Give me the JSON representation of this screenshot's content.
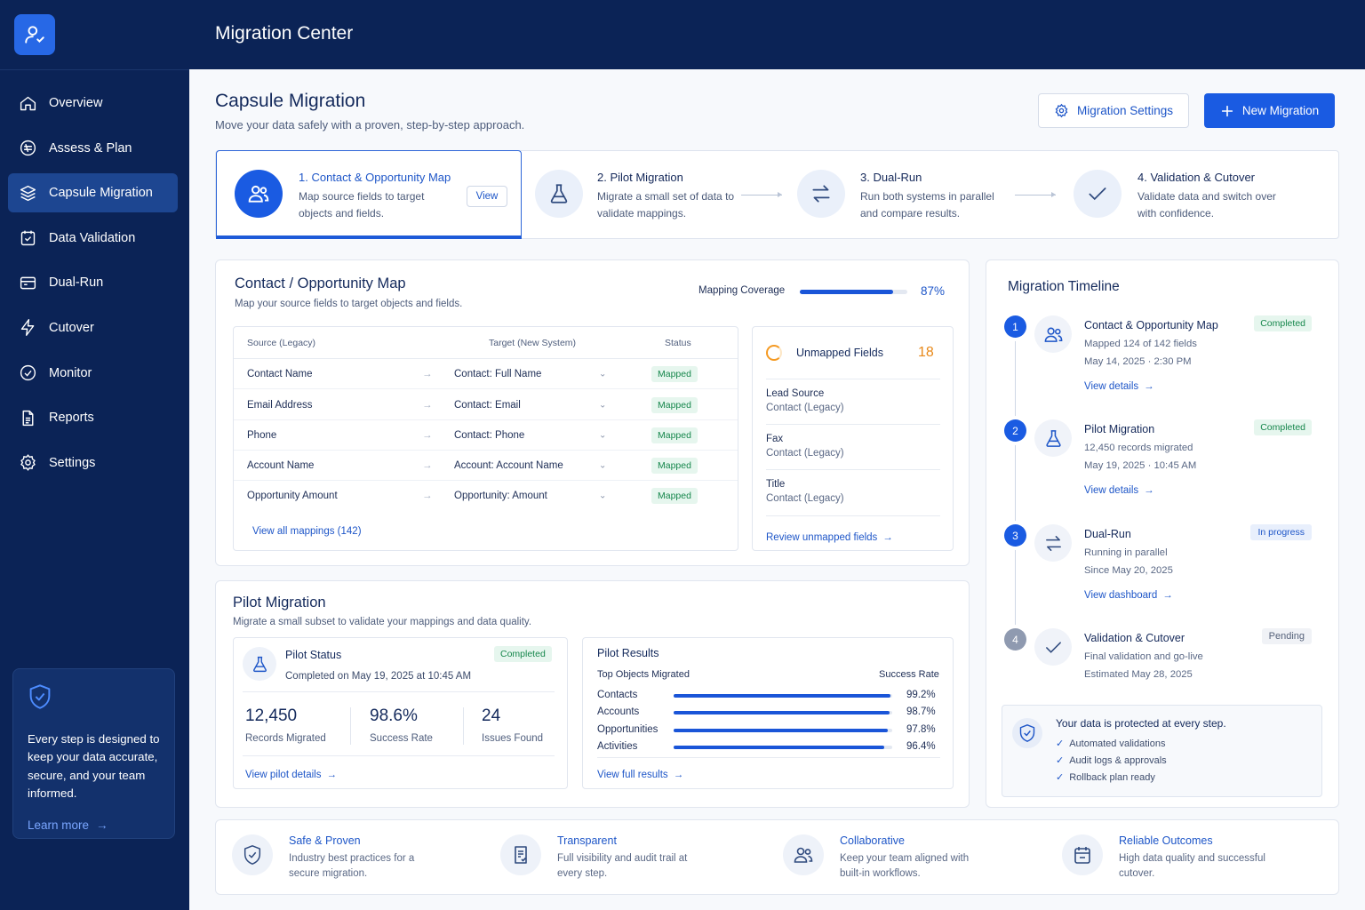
{
  "app": {
    "title": "Migration Center"
  },
  "sidebar": {
    "items": [
      {
        "label": "Overview",
        "icon": "home-icon"
      },
      {
        "label": "Assess & Plan",
        "icon": "assess-icon"
      },
      {
        "label": "Capsule Migration",
        "icon": "layers-icon",
        "active": true
      },
      {
        "label": "Data Validation",
        "icon": "calendar-check-icon"
      },
      {
        "label": "Dual-Run",
        "icon": "dual-run-icon"
      },
      {
        "label": "Cutover",
        "icon": "lightning-icon"
      },
      {
        "label": "Monitor",
        "icon": "gauge-icon"
      },
      {
        "label": "Reports",
        "icon": "document-icon"
      },
      {
        "label": "Settings",
        "icon": "gear-icon"
      }
    ],
    "promo": {
      "text": "Every step is designed to keep your data accurate, secure, and your team informed.",
      "link": "Learn more"
    }
  },
  "page": {
    "title": "Capsule Migration",
    "subtitle": "Move your data safely with a proven, step-by-step approach."
  },
  "actions": {
    "settings": "Migration Settings",
    "new": "New Migration"
  },
  "steps": [
    {
      "title": "1. Contact & Opportunity Map",
      "desc": "Map source fields to target objects and fields.",
      "button": "View"
    },
    {
      "title": "2. Pilot Migration",
      "desc": "Migrate a small set of data to validate mappings."
    },
    {
      "title": "3. Dual-Run",
      "desc": "Run both systems in parallel and compare results."
    },
    {
      "title": "4. Validation & Cutover",
      "desc": "Validate data and switch over with confidence."
    }
  ],
  "map": {
    "title": "Contact / Opportunity Map",
    "subtitle": "Map your source fields to target objects and fields.",
    "coverage_label": "Mapping Coverage",
    "coverage_value": "87%",
    "coverage_fraction": 0.87,
    "headers": {
      "source": "Source (Legacy)",
      "target": "Target (New System)",
      "status": "Status"
    },
    "rows": [
      {
        "source": "Contact Name",
        "target": "Contact: Full Name",
        "status": "Mapped"
      },
      {
        "source": "Email Address",
        "target": "Contact: Email",
        "status": "Mapped"
      },
      {
        "source": "Phone",
        "target": "Contact: Phone",
        "status": "Mapped"
      },
      {
        "source": "Account Name",
        "target": "Account: Account Name",
        "status": "Mapped"
      },
      {
        "source": "Opportunity Amount",
        "target": "Opportunity: Amount",
        "status": "Mapped"
      }
    ],
    "view_all": "View all mappings (142)",
    "unmapped": {
      "title": "Unmapped Fields",
      "count": "18",
      "items": [
        {
          "name": "Lead Source",
          "sub": "Contact (Legacy)"
        },
        {
          "name": "Fax",
          "sub": "Contact (Legacy)"
        },
        {
          "name": "Title",
          "sub": "Contact (Legacy)"
        }
      ],
      "link": "Review unmapped fields"
    }
  },
  "pilot": {
    "title": "Pilot Migration",
    "subtitle": "Migrate a small subset to validate your mappings and data quality.",
    "status_title": "Pilot Status",
    "status_badge": "Completed",
    "status_text": "Completed on May 19, 2025 at 10:45 AM",
    "stats": [
      {
        "value": "12,450",
        "label": "Records Migrated"
      },
      {
        "value": "98.6%",
        "label": "Success Rate"
      },
      {
        "value": "24",
        "label": "Issues Found"
      }
    ],
    "details_link": "View pilot details",
    "results_title": "Pilot Results",
    "results_col1": "Top Objects Migrated",
    "results_col2": "Success Rate",
    "results": [
      {
        "name": "Contacts",
        "rate": "99.2%",
        "fraction": 0.992
      },
      {
        "name": "Accounts",
        "rate": "98.7%",
        "fraction": 0.987
      },
      {
        "name": "Opportunities",
        "rate": "97.8%",
        "fraction": 0.978
      },
      {
        "name": "Activities",
        "rate": "96.4%",
        "fraction": 0.964
      }
    ],
    "results_link": "View full results"
  },
  "timeline": {
    "title": "Migration Timeline",
    "items": [
      {
        "num": "1",
        "title": "Contact & Opportunity Map",
        "line1": "Mapped 124 of 142 fields",
        "line2": "May 14, 2025 · 2:30 PM",
        "link": "View details",
        "badge": "Completed"
      },
      {
        "num": "2",
        "title": "Pilot Migration",
        "line1": "12,450 records migrated",
        "line2": "May 19, 2025 · 10:45 AM",
        "link": "View details",
        "badge": "Completed"
      },
      {
        "num": "3",
        "title": "Dual-Run",
        "line1": "Running in parallel",
        "line2": "Since May 20, 2025",
        "link": "View dashboard",
        "badge": "In progress"
      },
      {
        "num": "4",
        "title": "Validation & Cutover",
        "line1": "Final validation and go-live",
        "line2": "Estimated May 28, 2025",
        "badge": "Pending"
      }
    ],
    "protect": {
      "title": "Your data is protected at every step.",
      "items": [
        "Automated validations",
        "Audit logs & approvals",
        "Rollback plan ready"
      ]
    }
  },
  "features": [
    {
      "title": "Safe & Proven",
      "desc": "Industry best practices for a secure migration.",
      "icon": "shield-check-icon"
    },
    {
      "title": "Transparent",
      "desc": "Full visibility and audit trail at every step.",
      "icon": "audit-doc-icon"
    },
    {
      "title": "Collaborative",
      "desc": "Keep your team aligned with built-in workflows.",
      "icon": "team-icon"
    },
    {
      "title": "Reliable Outcomes",
      "desc": "High data quality and successful cutover.",
      "icon": "calendar-icon"
    }
  ]
}
